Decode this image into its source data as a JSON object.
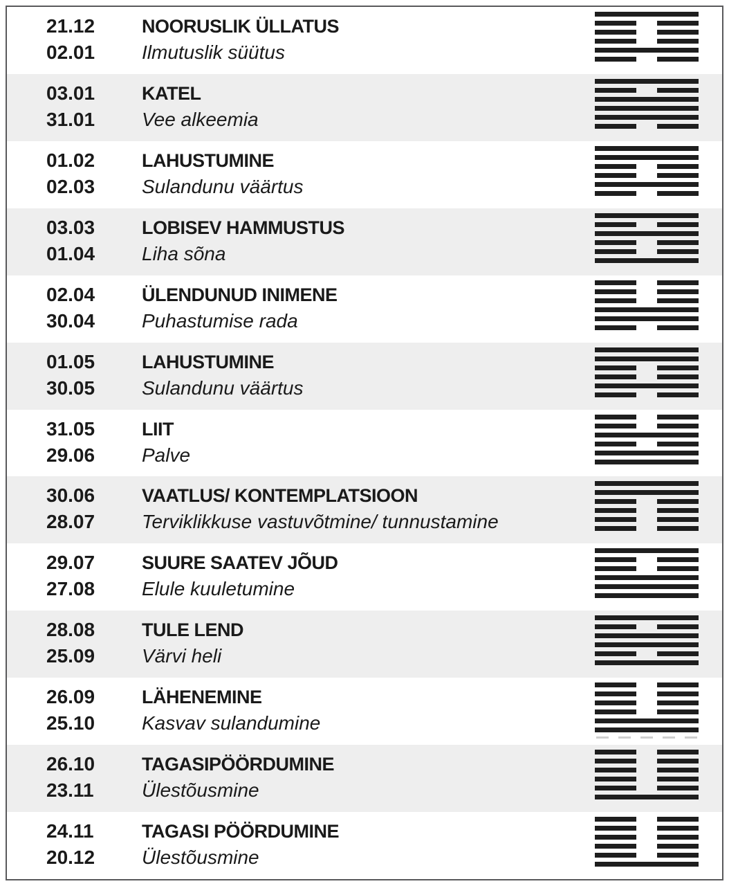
{
  "colors": {
    "text": "#1a1a1a",
    "hexagram_line": "#1e1e1e",
    "frame_border": "#59595b",
    "row_alt_background": "#eeeeee",
    "ghost_dash": "#cfcfcf"
  },
  "rows": [
    {
      "date_start": "21.12",
      "date_end": "02.01",
      "title": "NOORUSLIK ÜLLATUS",
      "subtitle": "Ilmutuslik süütus",
      "hexagram": [
        "solid",
        "broken",
        "broken",
        "broken",
        "solid",
        "broken"
      ]
    },
    {
      "date_start": "03.01",
      "date_end": "31.01",
      "title": "KATEL",
      "subtitle": "Vee alkeemia",
      "hexagram": [
        "solid",
        "broken",
        "solid",
        "solid",
        "solid",
        "broken"
      ]
    },
    {
      "date_start": "01.02",
      "date_end": "02.03",
      "title": "LAHUSTUMINE",
      "subtitle": "Sulandunu väärtus",
      "hexagram": [
        "solid",
        "solid",
        "broken",
        "broken",
        "solid",
        "broken"
      ]
    },
    {
      "date_start": "03.03",
      "date_end": "01.04",
      "title": "LOBISEV HAMMUSTUS",
      "subtitle": "Liha sõna",
      "hexagram": [
        "solid",
        "broken",
        "solid",
        "broken",
        "broken",
        "solid"
      ]
    },
    {
      "date_start": "02.04",
      "date_end": "30.04",
      "title": "ÜLENDUNUD INIMENE",
      "subtitle": "Puhastumise rada",
      "hexagram": [
        "broken",
        "broken",
        "broken",
        "solid",
        "solid",
        "broken"
      ]
    },
    {
      "date_start": "01.05",
      "date_end": "30.05",
      "title": "LAHUSTUMINE",
      "subtitle": "Sulandunu väärtus",
      "hexagram": [
        "solid",
        "solid",
        "broken",
        "broken",
        "solid",
        "broken"
      ]
    },
    {
      "date_start": "31.05",
      "date_end": "29.06",
      "title": "LIIT",
      "subtitle": "Palve",
      "hexagram": [
        "broken",
        "broken",
        "solid",
        "broken",
        "solid",
        "solid"
      ]
    },
    {
      "date_start": "30.06",
      "date_end": "28.07",
      "title": "VAATLUS/ KONTEMPLATSIOON",
      "subtitle": "Terviklikkuse vastuvõtmine/ tunnustamine",
      "hexagram": [
        "solid",
        "solid",
        "broken",
        "broken",
        "broken",
        "broken"
      ]
    },
    {
      "date_start": "29.07",
      "date_end": "27.08",
      "title": "SUURE SAATEV JÕUD",
      "subtitle": "Elule kuuletumine",
      "hexagram": [
        "solid",
        "broken",
        "broken",
        "solid",
        "solid",
        "solid"
      ]
    },
    {
      "date_start": "28.08",
      "date_end": "25.09",
      "title": "TULE LEND",
      "subtitle": "Värvi heli",
      "hexagram": [
        "solid",
        "broken",
        "solid",
        "solid",
        "broken",
        "solid"
      ]
    },
    {
      "date_start": "26.09",
      "date_end": "25.10",
      "title": "LÄHENEMINE",
      "subtitle": "Kasvav sulandumine",
      "hexagram": [
        "broken",
        "broken",
        "broken",
        "broken",
        "solid",
        "solid"
      ],
      "ghost_dashes": true
    },
    {
      "date_start": "26.10",
      "date_end": "23.11",
      "title": "TAGASIPÖÖRDUMINE",
      "subtitle": "Ülestõusmine",
      "hexagram": [
        "broken",
        "broken",
        "broken",
        "broken",
        "broken",
        "solid"
      ]
    },
    {
      "date_start": "24.11",
      "date_end": "20.12",
      "title": "TAGASI PÖÖRDUMINE",
      "subtitle": "Ülestõusmine",
      "hexagram": [
        "broken",
        "broken",
        "broken",
        "broken",
        "broken",
        "solid"
      ]
    }
  ]
}
